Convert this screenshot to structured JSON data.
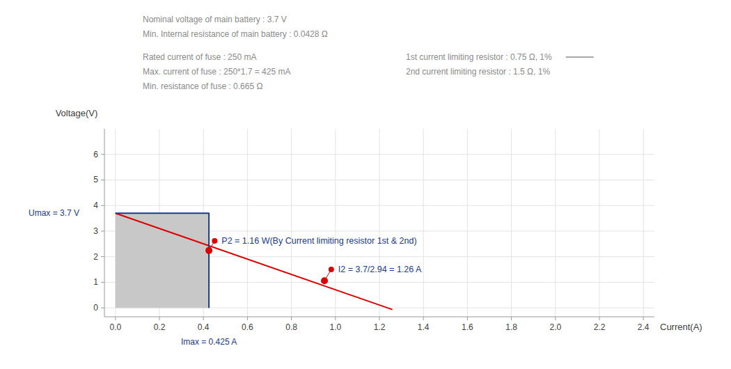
{
  "chart_data": {
    "type": "line",
    "x_label": "Current(A)",
    "y_label": "Voltage(V)",
    "xlim": [
      -0.05,
      2.45
    ],
    "ylim": [
      -0.35,
      7.0
    ],
    "xticks": [
      {
        "value": 0.0,
        "label": "0.0"
      },
      0.2,
      0.4,
      0.6,
      0.8,
      {
        "value": 1.0,
        "label": "1.0"
      },
      1.2,
      1.4,
      1.6,
      1.8,
      {
        "value": 2.0,
        "label": "2.0"
      },
      2.2,
      2.4
    ],
    "yticks": [
      0,
      1,
      2,
      3,
      4,
      5,
      6
    ],
    "grid": true,
    "series": [
      {
        "type": "area",
        "color": "#c8c8c8",
        "x": [
          0.0,
          0.425,
          0.425,
          0.0
        ],
        "values": [
          3.7,
          3.7,
          0.0,
          0.0
        ]
      },
      {
        "type": "line",
        "color": "#dd0000",
        "x": [
          0.0,
          1.259
        ],
        "values": [
          3.7,
          -0.068
        ]
      },
      {
        "type": "line",
        "color": "#1a3a8a",
        "x": [
          0.0,
          0.425,
          0.425
        ],
        "values": [
          3.7,
          3.7,
          0.0
        ]
      }
    ],
    "annotations": [
      {
        "text": "Umax = 3.7 V",
        "y": 3.7
      },
      {
        "text": "Imax = 0.425 A",
        "x": 0.425
      },
      {
        "text": "P2 = 1.16 W(By Current limiting resistor 1st & 2nd)",
        "x": 0.47,
        "y": 2.62,
        "point": [
          0.425,
          2.24
        ]
      },
      {
        "text": "I2 = 3.7/2.94 = 1.26 A",
        "x": 1.0,
        "y": 1.5,
        "point": [
          0.95,
          1.06
        ]
      }
    ],
    "notes": [
      [
        "Nominal voltage of main battery : 3.7 V",
        "Min. Internal resistance of main battery : 0.0428 Ω",
        "Rated current of fuse : 250 mA",
        "Max. current of fuse : 250*1.7 = 425 mA",
        "Min. resistance of fuse : 0.665 Ω"
      ],
      [
        "1st current limiting resistor : 0.75 Ω, 1%",
        "2nd current limiting resistor : 1.5 Ω, 1%"
      ]
    ]
  }
}
